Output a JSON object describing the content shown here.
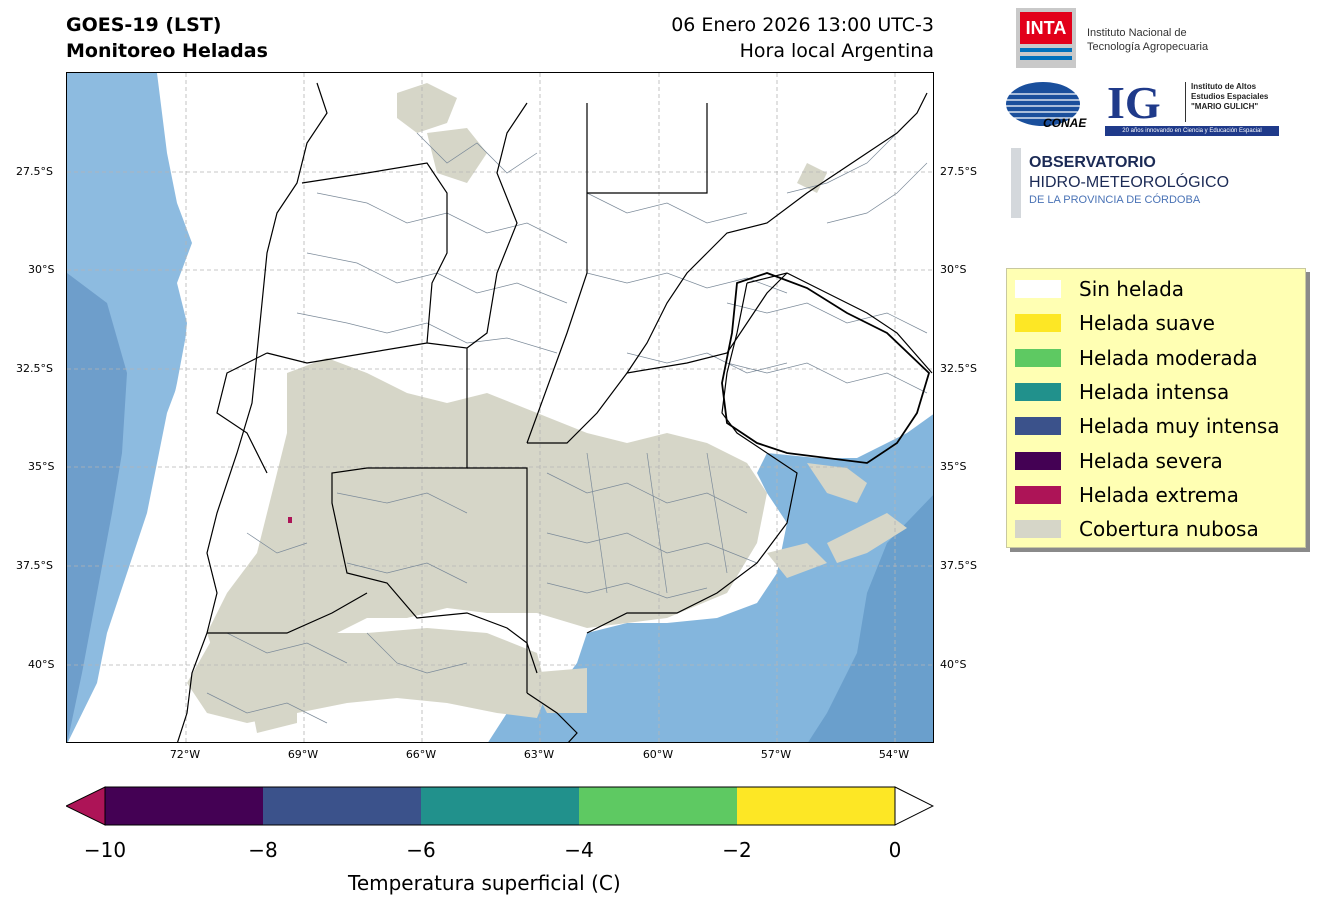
{
  "header": {
    "title_line1": "GOES-19 (LST)",
    "title_line2": "Monitoreo Heladas",
    "date_line": "06 Enero 2026 13:00 UTC-3",
    "local_line": "Hora local Argentina"
  },
  "map": {
    "latitude_labels": [
      "27.5°S",
      "30°S",
      "32.5°S",
      "35°S",
      "37.5°S",
      "40°S"
    ],
    "longitude_labels": [
      "72°W",
      "69°W",
      "66°W",
      "63°W",
      "60°W",
      "57°W",
      "54°W"
    ]
  },
  "logos": {
    "inta_mark": "INTA",
    "inta_line1": "Instituto Nacional de",
    "inta_line2": "Tecnología Agropecuaria",
    "conae": "CONAE",
    "ig_mark": "IG",
    "ig_line1": "Instituto de Altos",
    "ig_line2": "Estudios Espaciales",
    "ig_line3": "\"MARIO GULICH\"",
    "ig_tagline": "20 años innovando en Ciencia y Educación Espacial",
    "obs_line1": "OBSERVATORIO",
    "obs_line2": "HIDRO-METEOROLÓGICO",
    "obs_line3": "DE LA PROVINCIA DE CÓRDOBA"
  },
  "legend": {
    "items": [
      {
        "label": "Sin helada",
        "color": "#ffffff"
      },
      {
        "label": "Helada suave",
        "color": "#fde725"
      },
      {
        "label": "Helada moderada",
        "color": "#5ec962"
      },
      {
        "label": "Helada intensa",
        "color": "#21918c"
      },
      {
        "label": "Helada muy intensa",
        "color": "#3b528b"
      },
      {
        "label": "Helada severa",
        "color": "#440154"
      },
      {
        "label": "Helada extrema",
        "color": "#ad1457"
      },
      {
        "label": "Cobertura nubosa",
        "color": "#d6d6c8"
      }
    ]
  },
  "colorbar": {
    "ticks": [
      "−10",
      "−8",
      "−6",
      "−4",
      "−2",
      "0"
    ],
    "title": "Temperatura superficial (C)",
    "segment_colors": [
      "#440154",
      "#3b528b",
      "#21918c",
      "#5ec962",
      "#fde725"
    ],
    "under_color": "#ad1457",
    "over_color": "#ffffff"
  },
  "colors": {
    "ocean": "#7fb2d9",
    "ocean_deep": "#6a9fcc",
    "cloud": "#d6d6c8",
    "border": "#000000",
    "department": "#6f7f8f",
    "grid": "#b0b0b0"
  }
}
